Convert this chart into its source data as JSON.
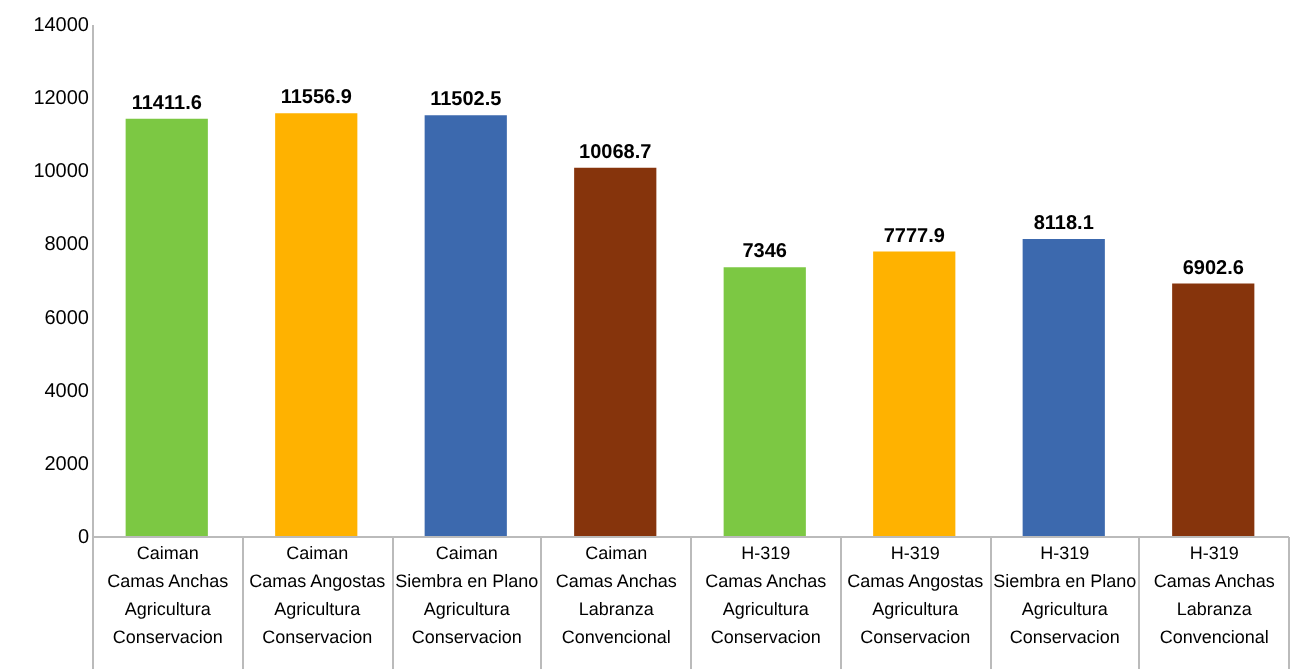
{
  "chart_data": {
    "type": "bar",
    "categories": [
      "Caiman\nCamas Anchas\nAgricultura\nConservacion",
      "Caiman\nCamas Angostas\nAgricultura\nConservacion",
      "Caiman\nSiembra en Plano\nAgricultura\nConservacion",
      "Caiman\nCamas Anchas\nLabranza\nConvencional",
      "H-319\nCamas Anchas\nAgricultura\nConservacion",
      "H-319\nCamas Angostas\nAgricultura\nConservacion",
      "H-319\nSiembra en Plano\nAgricultura\nConservacion",
      "H-319\nCamas Anchas\nLabranza\nConvencional"
    ],
    "values": [
      11411.6,
      11556.9,
      11502.5,
      10068.7,
      7346,
      7777.9,
      8118.1,
      6902.6
    ],
    "colors": [
      "#7cc843",
      "#ffb200",
      "#3c69ae",
      "#86340c",
      "#7cc843",
      "#ffb200",
      "#3c69ae",
      "#86340c"
    ],
    "ylim": [
      0,
      14000
    ],
    "yticks": [
      0,
      2000,
      4000,
      6000,
      8000,
      10000,
      12000,
      14000
    ],
    "data_labels": true,
    "grid": false
  }
}
